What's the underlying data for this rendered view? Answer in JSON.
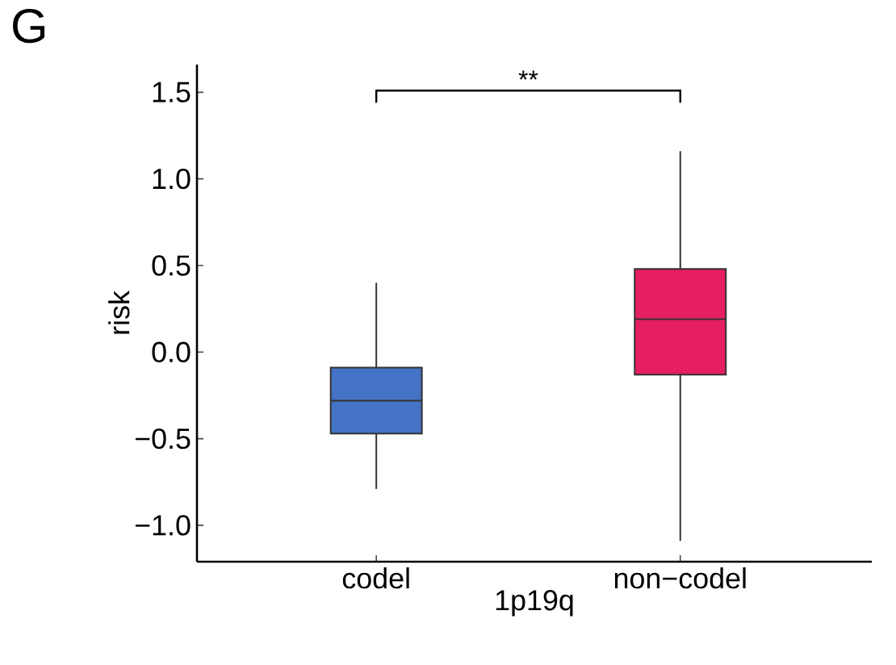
{
  "chart_data": {
    "type": "box",
    "xlabel": "1p19q",
    "ylabel": "risk",
    "categories": [
      "codel",
      "non−codel"
    ],
    "colors": [
      "#4472c4",
      "#e61e64"
    ],
    "boxes": [
      {
        "low": -0.79,
        "q1": -0.47,
        "median": -0.28,
        "q3": -0.09,
        "high": 0.4
      },
      {
        "low": -1.09,
        "q1": -0.13,
        "median": 0.19,
        "q3": 0.48,
        "high": 1.16
      }
    ],
    "ylim": [
      -1.21,
      1.66
    ],
    "yticks": [
      {
        "value": -1,
        "label": "−1.0"
      },
      {
        "value": -0.5,
        "label": "−0.5"
      },
      {
        "value": 0,
        "label": "0.0"
      },
      {
        "value": 0.5,
        "label": "0.5"
      },
      {
        "value": 1,
        "label": "1.0"
      },
      {
        "value": 1.5,
        "label": "1.5"
      }
    ],
    "grid": false,
    "annotations": [
      "G",
      "**"
    ]
  }
}
